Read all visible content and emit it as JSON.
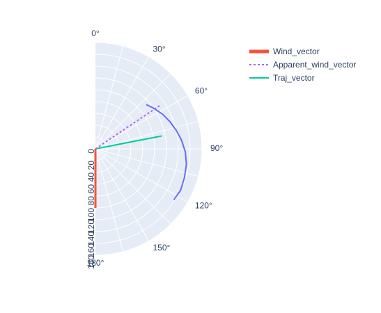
{
  "chart_data": {
    "type": "polar",
    "sector": "half",
    "radial_axis": {
      "range": [
        0,
        180
      ],
      "tick_labels": [
        "0",
        "20",
        "40",
        "60",
        "80",
        "100",
        "120",
        "140",
        "160",
        "180"
      ]
    },
    "angular_axis": {
      "direction": "clockwise",
      "rotation": "0° at top",
      "tick_labels": [
        "0°",
        "30°",
        "60°",
        "90°",
        "120°",
        "150°",
        "180°"
      ]
    },
    "grid": true,
    "legend": {
      "placement": "top-right"
    },
    "series": [
      {
        "name": "Wind_vector",
        "style": "solid-thick",
        "color": "#ef553b",
        "r": [
          0,
          100
        ],
        "theta": [
          180,
          180
        ]
      },
      {
        "name": "Apparent_wind_vector",
        "style": "dotted",
        "color": "#ab63fa",
        "r": [
          0,
          134
        ],
        "theta": [
          56,
          56
        ]
      },
      {
        "name": "Traj_vector",
        "style": "solid",
        "color": "#00cc96",
        "r": [
          0,
          114
        ],
        "theta": [
          79,
          79
        ]
      },
      {
        "name": "",
        "style": "solid",
        "color": "#636efa",
        "showlegend": false,
        "r": [
          114,
          120,
          128,
          134,
          140,
          146,
          152,
          156,
          158,
          160,
          158
        ],
        "theta": [
          49,
          55,
          63,
          70,
          77,
          84,
          92,
          100,
          108,
          116,
          123
        ]
      }
    ]
  }
}
